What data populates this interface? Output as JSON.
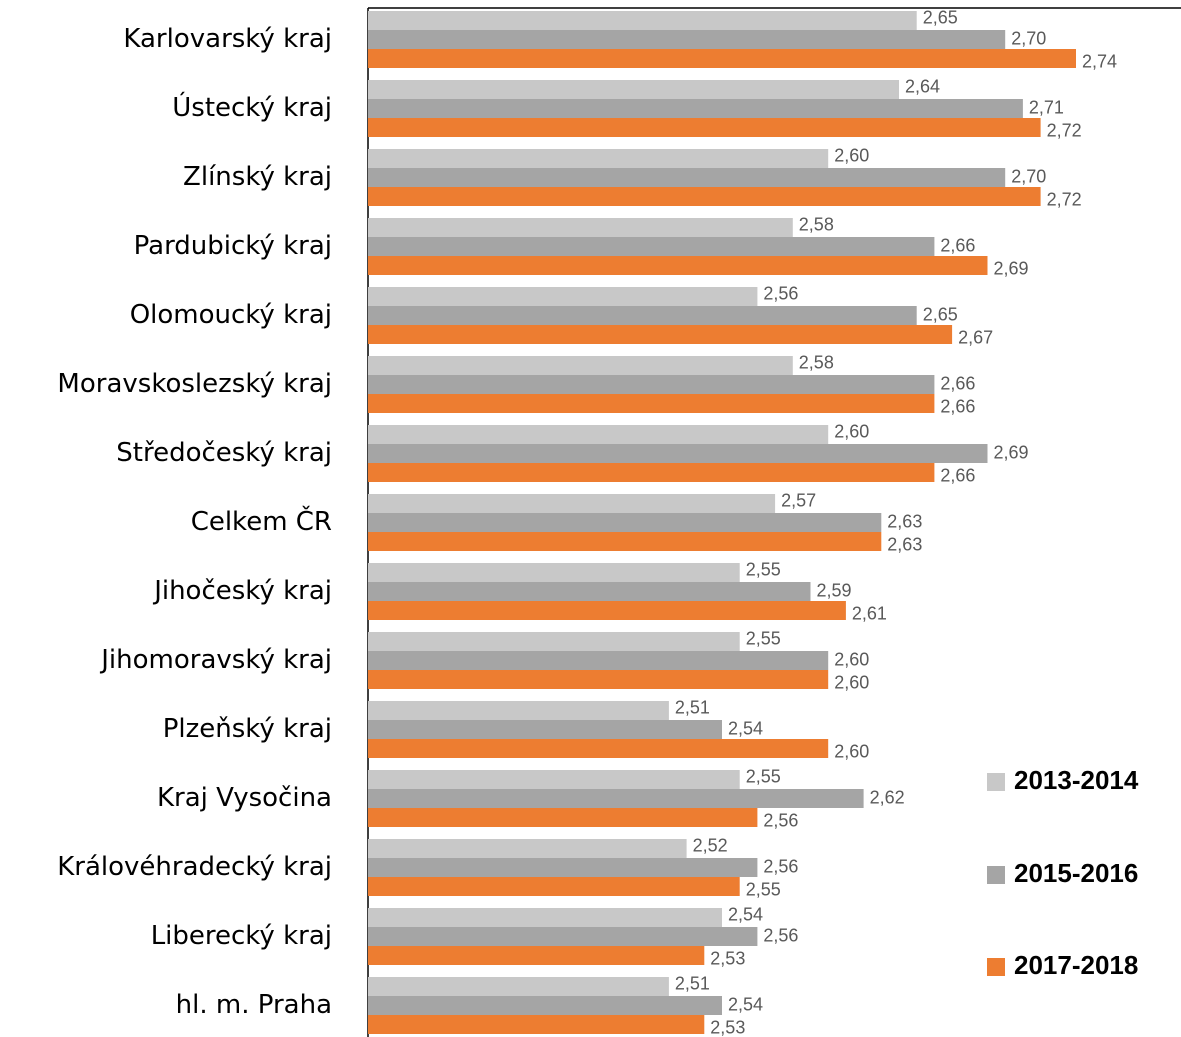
{
  "chart_data": {
    "type": "hbar",
    "categories": [
      "Karlovarský kraj",
      "Ústecký kraj",
      "Zlínský kraj",
      "Pardubický kraj",
      "Olomoucký kraj",
      "Moravskoslezský kraj",
      "Středočeský kraj",
      "Celkem ČR",
      "Jihočeský kraj",
      "Jihomoravský kraj",
      "Plzeňský kraj",
      "Kraj Vysočina",
      "Královéhradecký kraj",
      "Liberecký kraj",
      "hl. m. Praha"
    ],
    "series": [
      {
        "name": "2013-2014",
        "color": "#c8c8c8",
        "values": [
          2.65,
          2.64,
          2.6,
          2.58,
          2.56,
          2.58,
          2.6,
          2.57,
          2.55,
          2.55,
          2.51,
          2.55,
          2.52,
          2.54,
          2.51
        ],
        "value_labels": [
          "2,65",
          "2,64",
          "2,60",
          "2,58",
          "2,56",
          "2,58",
          "2,60",
          "2,57",
          "2,55",
          "2,55",
          "2,51",
          "2,55",
          "2,52",
          "2,54",
          "2,51"
        ]
      },
      {
        "name": "2015-2016",
        "color": "#a5a5a5",
        "values": [
          2.7,
          2.71,
          2.7,
          2.66,
          2.65,
          2.66,
          2.69,
          2.63,
          2.59,
          2.6,
          2.54,
          2.62,
          2.56,
          2.56,
          2.54
        ],
        "value_labels": [
          "2,70",
          "2,71",
          "2,70",
          "2,66",
          "2,65",
          "2,66",
          "2,69",
          "2,63",
          "2,59",
          "2,60",
          "2,54",
          "2,62",
          "2,56",
          "2,56",
          "2,54"
        ]
      },
      {
        "name": "2017-2018",
        "color": "#ed7d31",
        "values": [
          2.74,
          2.72,
          2.72,
          2.69,
          2.67,
          2.66,
          2.66,
          2.63,
          2.61,
          2.6,
          2.6,
          2.56,
          2.55,
          2.53,
          2.53
        ],
        "value_labels": [
          "2,74",
          "2,72",
          "2,72",
          "2,69",
          "2,67",
          "2,66",
          "2,66",
          "2,63",
          "2,61",
          "2,60",
          "2,60",
          "2,56",
          "2,55",
          "2,53",
          "2,53"
        ]
      }
    ],
    "xlim": [
      2.34,
      2.79
    ],
    "legend": "right"
  }
}
